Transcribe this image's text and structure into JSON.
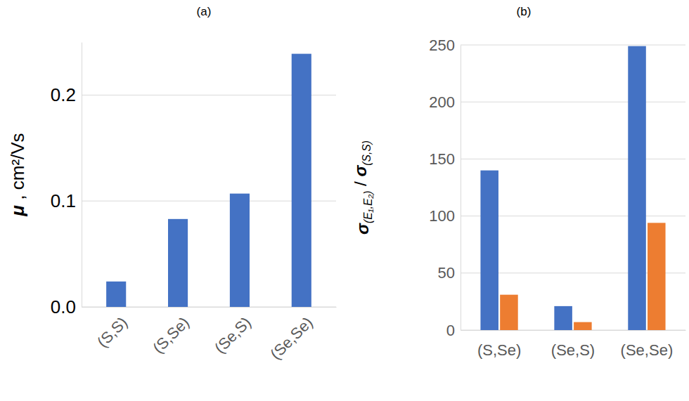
{
  "chart_data": [
    {
      "type": "bar",
      "title": "(a)",
      "y_label": "μ , cm²/Vs",
      "categories": [
        "(S,S)",
        "(S,Se)",
        "(Se,S)",
        "(Se,Se)"
      ],
      "values": [
        0.024,
        0.083,
        0.107,
        0.239
      ],
      "color": "#4472c4",
      "ylim": [
        0,
        0.25
      ],
      "yticks": [
        {
          "value": 0,
          "label": "0.0"
        },
        0.1,
        0.2
      ],
      "grid": true
    },
    {
      "type": "bar",
      "title": "(b)",
      "y_label": "σ(E₁,E₂) / σ(S,S)",
      "categories": [
        "(S,Se)",
        "(Se,S)",
        "(Se,Se)"
      ],
      "series": [
        {
          "color": "#4472c4",
          "values": [
            140,
            21,
            249
          ]
        },
        {
          "color": "#ed7d31",
          "values": [
            31,
            7,
            94
          ]
        }
      ],
      "ylim": [
        0,
        250
      ],
      "yticks": [
        0,
        50,
        100,
        150,
        200,
        250
      ],
      "grid": true
    }
  ]
}
